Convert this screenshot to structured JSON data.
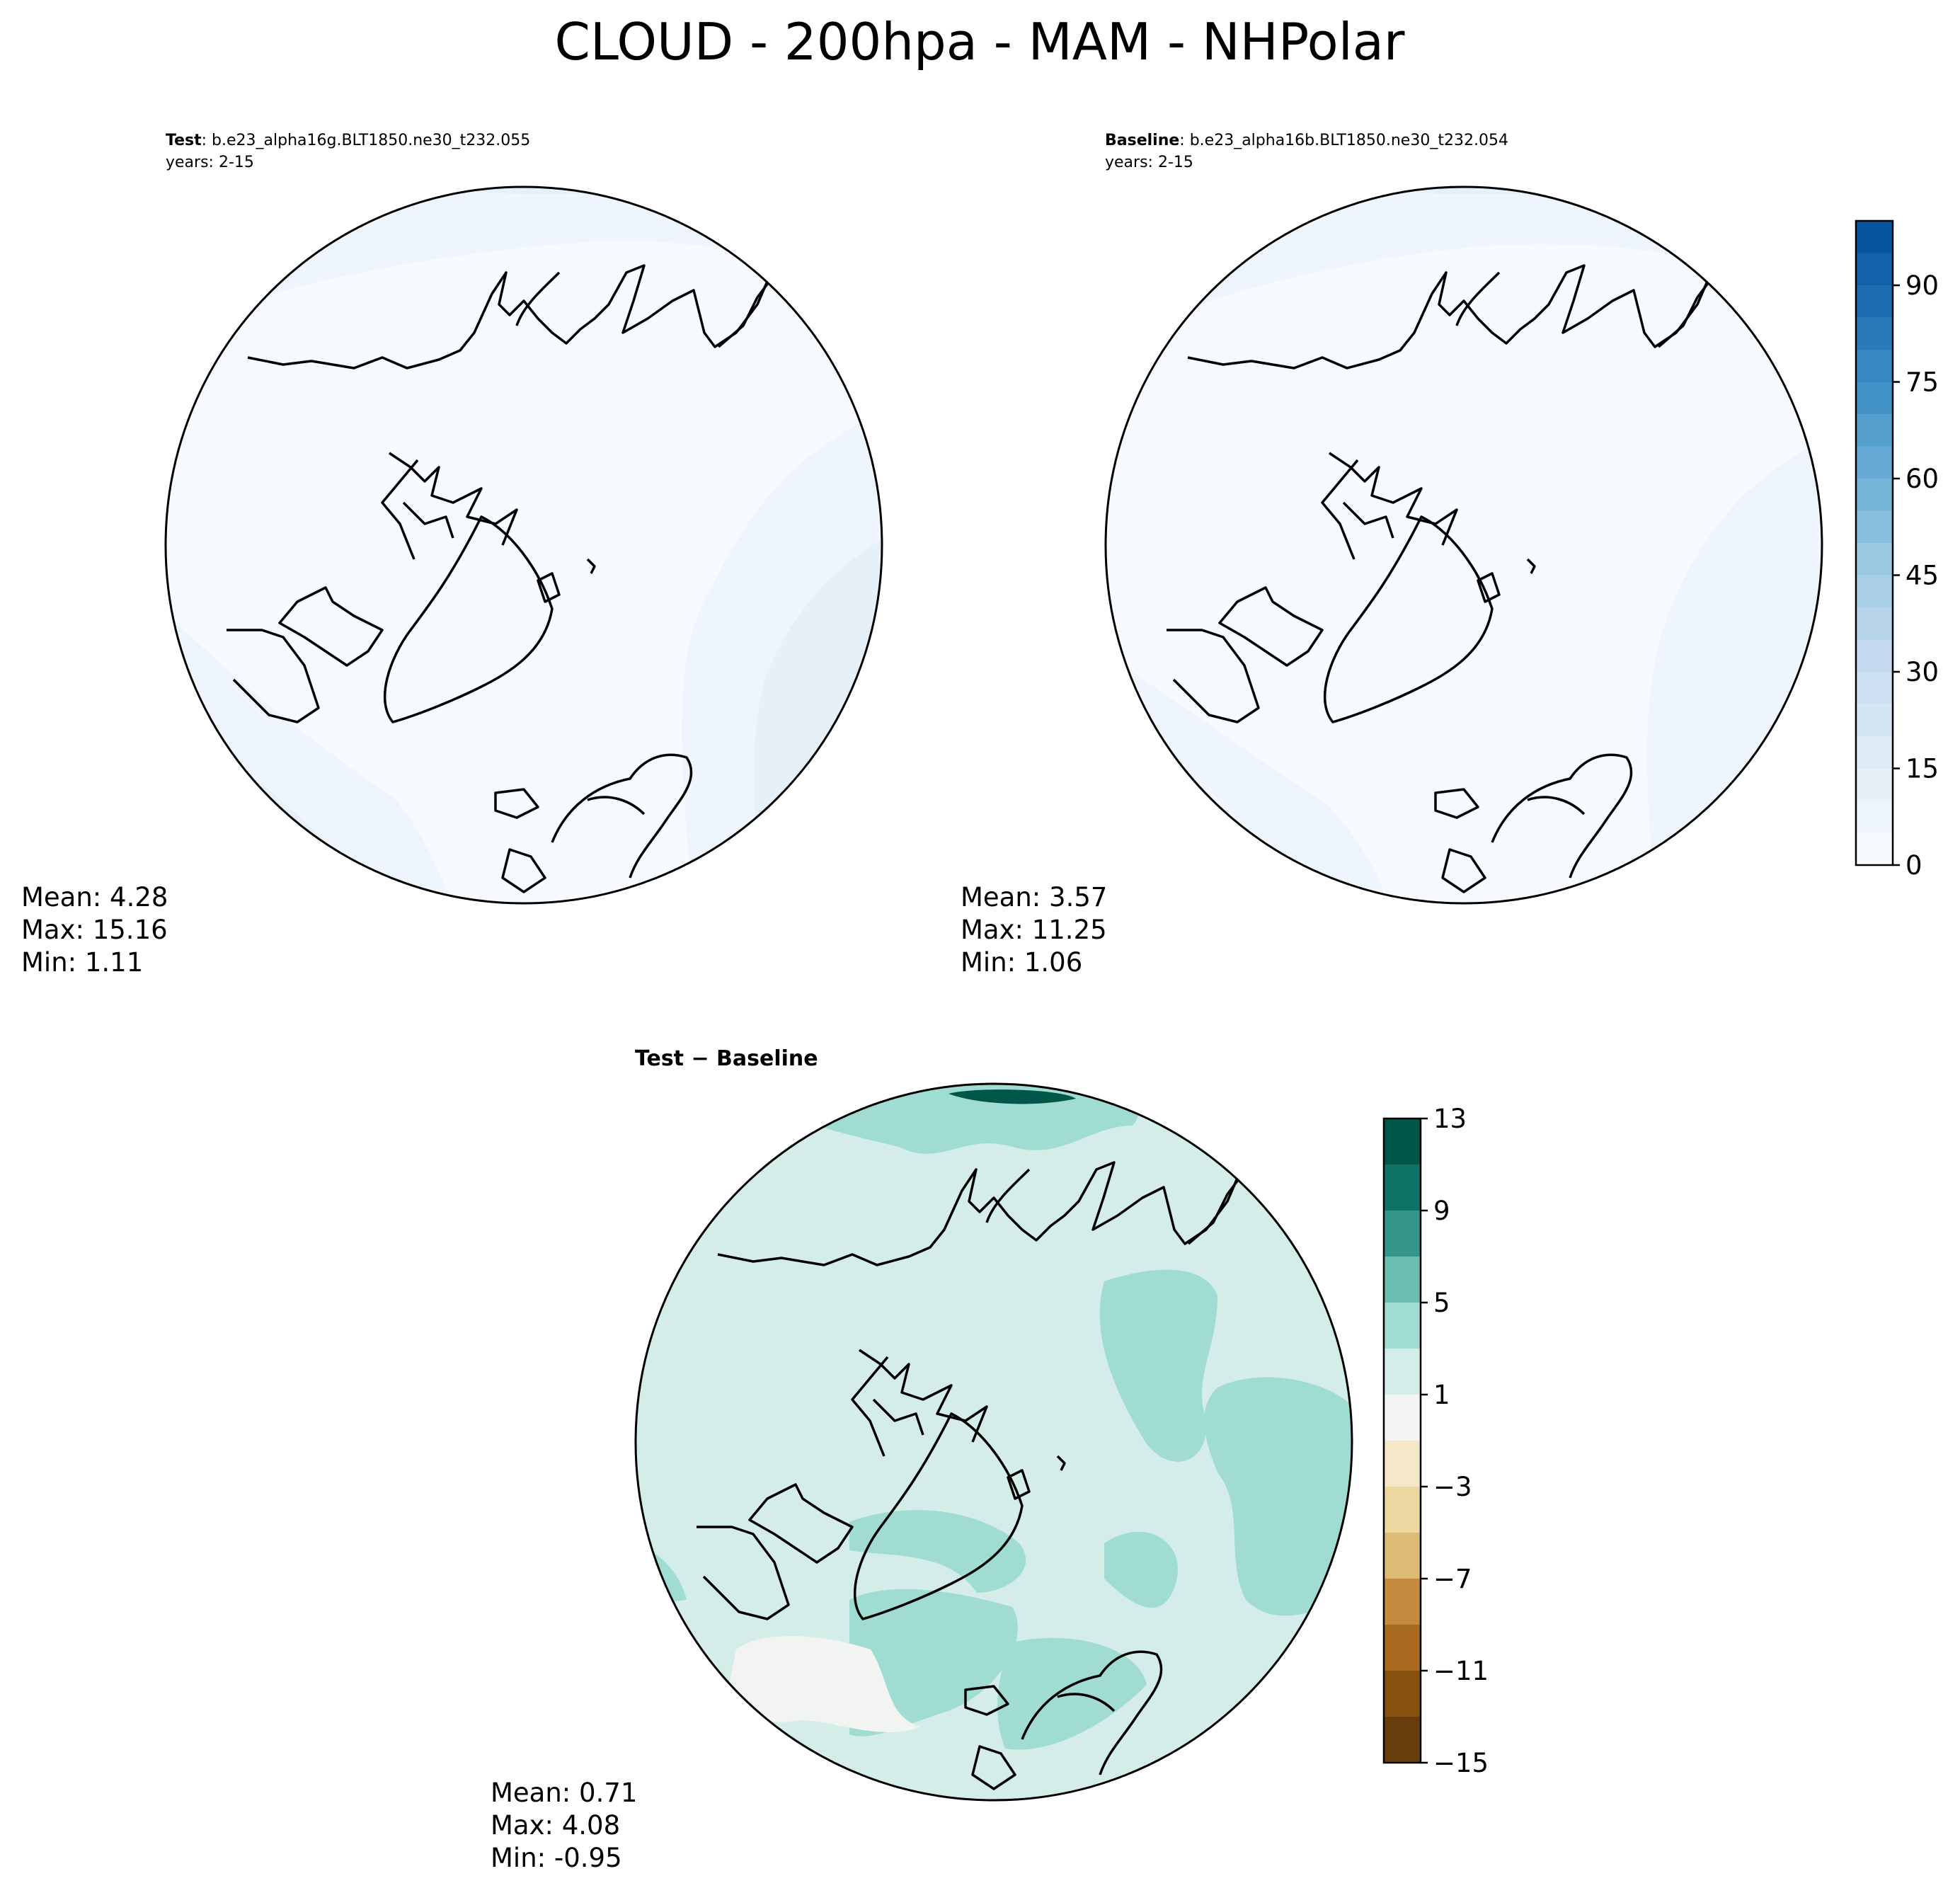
{
  "figure": {
    "title": "CLOUD - 200hpa - MAM - NHPolar"
  },
  "chart_data": [
    {
      "type": "heatmap",
      "projection": "north-polar-stereographic",
      "panel": "test",
      "label_bold": "Test",
      "label_text": ": b.e23_alpha16g.BLT1850.ne30_t232.055",
      "years": "years: 2-15",
      "stats": {
        "mean": "Mean:  4.28",
        "max": "Max: 15.16",
        "min": "Min:  1.11"
      },
      "field_classes": [
        0,
        5,
        10
      ]
    },
    {
      "type": "heatmap",
      "projection": "north-polar-stereographic",
      "panel": "baseline",
      "label_bold": "Baseline",
      "label_text": ": b.e23_alpha16b.BLT1850.ne30_t232.054",
      "years": "years: 2-15",
      "stats": {
        "mean": "Mean:  3.57",
        "max": "Max: 11.25",
        "min": "Min:  1.06"
      },
      "field_classes": [
        0,
        5,
        10
      ]
    },
    {
      "type": "heatmap",
      "projection": "north-polar-stereographic",
      "panel": "difference",
      "label_bold": "Test − Baseline",
      "stats": {
        "mean": "Mean:  0.71",
        "max": "Max:  4.08",
        "min": "Min: -0.95"
      },
      "field_classes": [
        -1,
        1,
        3
      ]
    }
  ],
  "colorbars": {
    "main": {
      "vmin": 0,
      "vmax": 100,
      "step": 5,
      "ticks": [
        0,
        15,
        30,
        45,
        60,
        75,
        90
      ],
      "colors": [
        "#f7fbff",
        "#eef5fc",
        "#e6f0f9",
        "#deebf7",
        "#d5e5f4",
        "#cde0f1",
        "#c2d9ee",
        "#b7d4ea",
        "#a9cfe5",
        "#9ac8e0",
        "#89bedc",
        "#77b5d9",
        "#65aad4",
        "#549fcd",
        "#4493c7",
        "#3787c0",
        "#2a7ab9",
        "#1e6db2",
        "#1361a9",
        "#08539d",
        "#08468b",
        "#083a7a",
        "#08306b"
      ]
    },
    "diff": {
      "vmin": -15,
      "vmax": 13,
      "bounds": [
        -15,
        -13,
        -11,
        -9,
        -7,
        -5,
        -3,
        -1,
        1,
        3,
        5,
        7,
        9,
        11,
        13
      ],
      "ticks": [
        "13",
        "9",
        "5",
        "1",
        "−3",
        "−7",
        "−11",
        "−15"
      ],
      "colors": [
        "#673d0c",
        "#87520f",
        "#a86a1f",
        "#c48a3e",
        "#dbbb76",
        "#ecd7a0",
        "#f5e8c9",
        "#f2f4f2",
        "#d4ede9",
        "#a0dcd1",
        "#6bbdb2",
        "#349588",
        "#0e7267",
        "#01564a"
      ]
    }
  }
}
